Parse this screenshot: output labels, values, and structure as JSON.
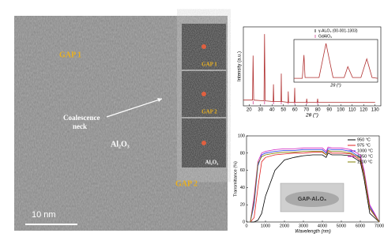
{
  "tem": {
    "labels": [
      "GAP 1",
      "Al₂O₃",
      "GAP 2"
    ],
    "neck_label": [
      "Coalescence",
      "neck"
    ],
    "scale_bar": "10 nm",
    "inset_labels": [
      "GAP 1",
      "GAP 2",
      "Al₂O₃"
    ]
  },
  "chart_data": [
    {
      "type": "line",
      "ylabel": "Intensity (a.u.)",
      "xlabel": "2θ (°)",
      "xlim": [
        15,
        135
      ],
      "xticks": [
        20,
        30,
        40,
        50,
        60,
        70,
        80,
        90,
        100,
        110,
        120,
        130
      ],
      "ylim": [
        0,
        110
      ],
      "x": [
        15,
        23,
        23.5,
        24,
        33,
        33.5,
        34,
        41,
        41.3,
        41.6,
        47.8,
        48.1,
        48.4,
        54,
        54.2,
        54.5,
        59.5,
        59.8,
        60.1,
        70,
        70.3,
        70.6,
        79.5,
        79.8,
        80.1,
        90,
        100,
        110,
        120,
        130
      ],
      "series": [
        {
          "color": "#b03030",
          "values": [
            8,
            8,
            70,
            8,
            7,
            100,
            7,
            6,
            30,
            6,
            6,
            45,
            6,
            5,
            20,
            5,
            5,
            25,
            5,
            5,
            10,
            5,
            5,
            10,
            5,
            5,
            5,
            5,
            5,
            5
          ]
        }
      ],
      "legend_labels": [
        "γ-Al₂O₃ (00-001-1303)",
        "GdAlO₃"
      ],
      "reference_peaks": [
        23.5,
        33.5,
        41.3,
        48.1,
        54.2,
        59.8,
        70.3,
        79.8
      ],
      "reference_color": "#d04090"
    },
    {
      "type": "line",
      "xlabel": "2θ (°)",
      "xlim": [
        22,
        52
      ],
      "ylim": [
        0,
        110
      ],
      "x": [
        22,
        25,
        25.6,
        26,
        31,
        33.5,
        36,
        40,
        41.3,
        43,
        46,
        48.1,
        50,
        52
      ],
      "series": [
        {
          "color": "#b03030",
          "values": [
            10,
            10,
            70,
            12,
            12,
            100,
            12,
            12,
            40,
            12,
            12,
            60,
            12,
            10
          ]
        }
      ]
    },
    {
      "type": "line",
      "ylabel": "Transmittance (%)",
      "xlabel": "Wavelength (nm)",
      "xlim": [
        0,
        7000
      ],
      "xticks": [
        0,
        1000,
        2000,
        3000,
        4000,
        5000,
        6000,
        7000
      ],
      "ylim": [
        0,
        100
      ],
      "yticks": [
        0,
        20,
        40,
        60,
        80,
        100
      ],
      "legend": "upper right",
      "photo_label": "GAP-Al₂O₃",
      "x": [
        200,
        400,
        600,
        800,
        1000,
        1500,
        2000,
        2500,
        3000,
        3500,
        4000,
        4200,
        4300,
        4500,
        5000,
        5500,
        6000,
        6200,
        6500,
        7000
      ],
      "series": [
        {
          "name": "950 °C",
          "color": "#000000",
          "values": [
            0,
            0,
            2,
            10,
            30,
            60,
            72,
            75,
            77,
            78,
            78,
            75,
            80,
            78,
            78,
            77,
            70,
            50,
            10,
            0
          ]
        },
        {
          "name": "975 °C",
          "color": "#e02020",
          "values": [
            0,
            5,
            40,
            70,
            75,
            78,
            79,
            80,
            80,
            81,
            81,
            78,
            82,
            80,
            80,
            79,
            72,
            55,
            15,
            0
          ]
        },
        {
          "name": "1000 °C",
          "color": "#2030e0",
          "values": [
            0,
            20,
            65,
            78,
            80,
            82,
            83,
            83,
            84,
            84,
            84,
            80,
            85,
            84,
            84,
            82,
            75,
            58,
            18,
            0
          ]
        },
        {
          "name": "1050 °C",
          "color": "#d020c0",
          "values": [
            0,
            30,
            70,
            80,
            82,
            84,
            85,
            85,
            86,
            86,
            86,
            82,
            87,
            86,
            86,
            84,
            78,
            60,
            20,
            0
          ]
        },
        {
          "name": "1100 °C",
          "color": "#808000",
          "values": [
            0,
            25,
            68,
            76,
            78,
            80,
            81,
            81,
            82,
            82,
            82,
            78,
            83,
            82,
            82,
            80,
            74,
            56,
            16,
            0
          ]
        }
      ]
    }
  ]
}
